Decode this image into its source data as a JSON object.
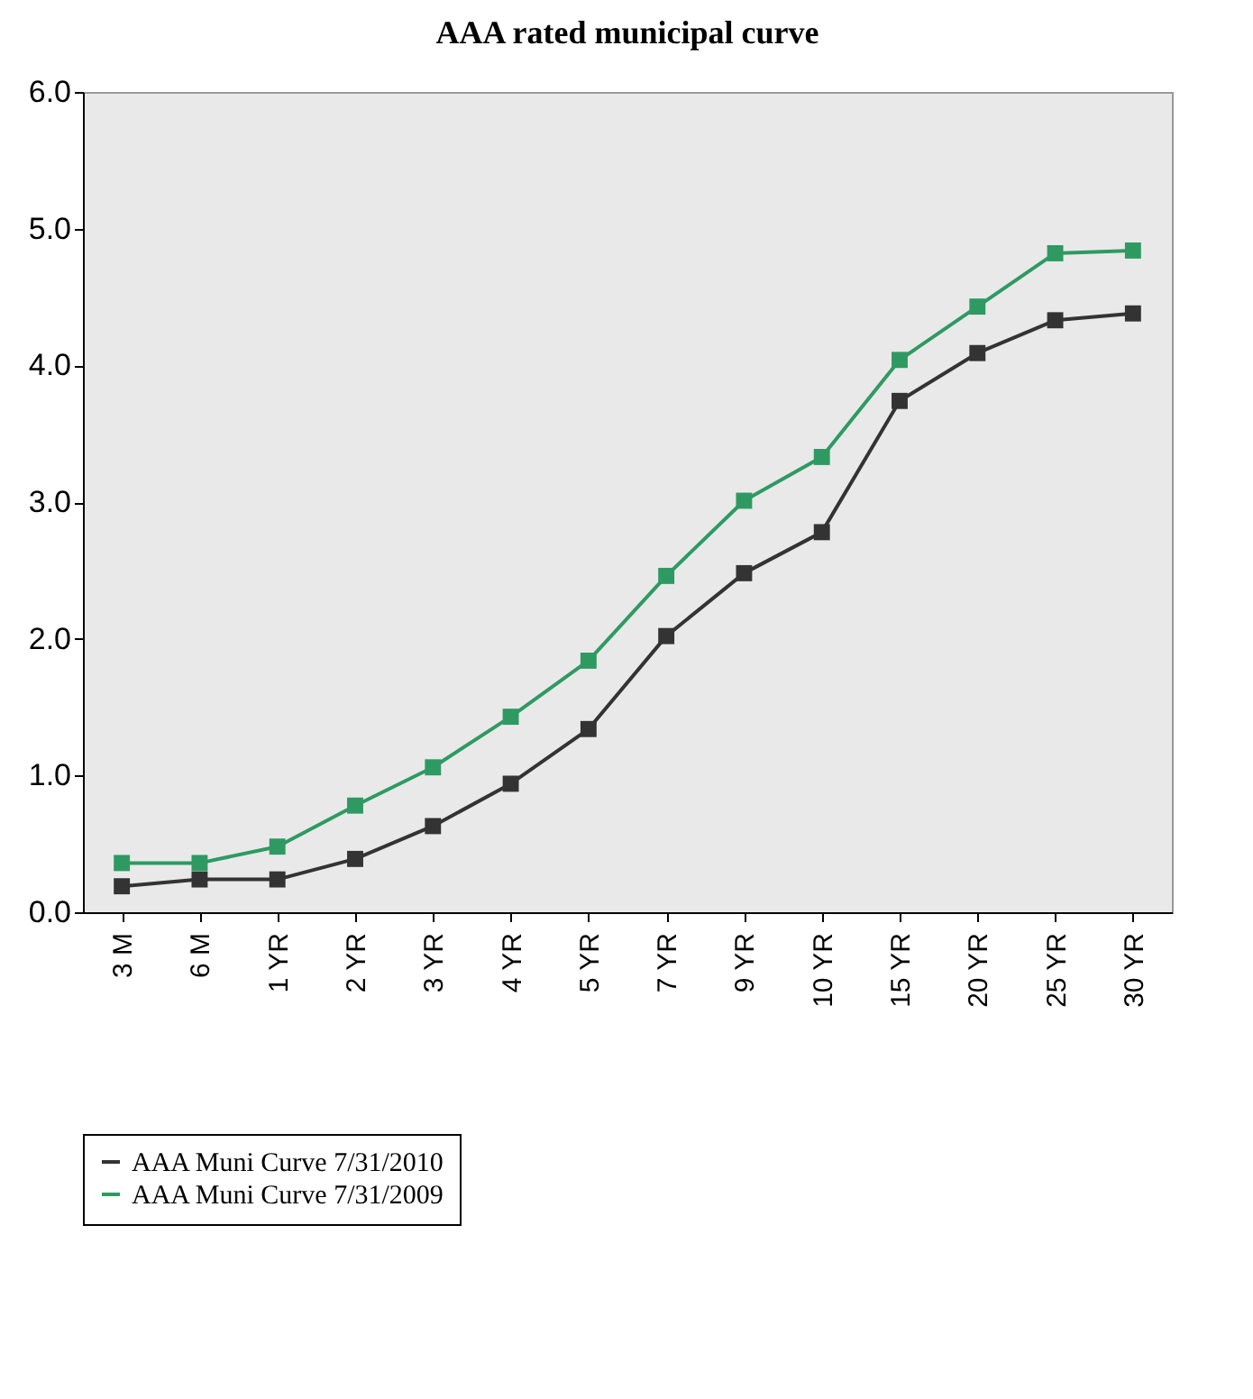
{
  "chart_data": {
    "type": "line",
    "title": "AAA rated municipal curve",
    "categories": [
      "3 M",
      "6 M",
      "1 YR",
      "2 YR",
      "3 YR",
      "4 YR",
      "5 YR",
      "7 YR",
      "9 YR",
      "10 YR",
      "15 YR",
      "20 YR",
      "25 YR",
      "30 YR"
    ],
    "series": [
      {
        "name": "AAA Muni Curve 7/31/2010",
        "color": "#333333",
        "values": [
          0.19,
          0.24,
          0.24,
          0.39,
          0.63,
          0.94,
          1.34,
          2.02,
          2.48,
          2.78,
          3.74,
          4.09,
          4.33,
          4.38
        ]
      },
      {
        "name": "AAA Muni Curve 7/31/2009",
        "color": "#2e9a62",
        "values": [
          0.36,
          0.36,
          0.48,
          0.78,
          1.06,
          1.43,
          1.84,
          2.46,
          3.01,
          3.33,
          4.04,
          4.43,
          4.82,
          4.84
        ]
      }
    ],
    "ylim": [
      0,
      6
    ],
    "yticks": [
      {
        "value": 0,
        "label": "0.0"
      },
      {
        "value": 1,
        "label": "1.0"
      },
      {
        "value": 2,
        "label": "2.0"
      },
      {
        "value": 3,
        "label": "3.0"
      },
      {
        "value": 4,
        "label": "4.0"
      },
      {
        "value": 5,
        "label": "5.0"
      },
      {
        "value": 6,
        "label": "6.0"
      }
    ],
    "grid": false,
    "legend": "bottom",
    "marker": "square",
    "line_style": "solid"
  }
}
